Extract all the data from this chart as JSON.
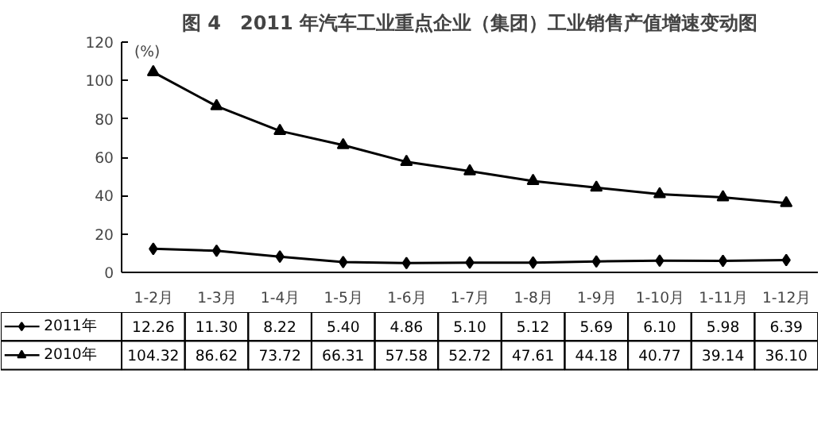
{
  "chart_data": {
    "type": "line",
    "title": "图 4　2011 年汽车工业重点企业（集团）工业销售产值增速变动图",
    "ylabel": "(%)",
    "categories": [
      "1-2月",
      "1-3月",
      "1-4月",
      "1-5月",
      "1-6月",
      "1-7月",
      "1-8月",
      "1-9月",
      "1-10月",
      "1-11月",
      "1-12月"
    ],
    "series": [
      {
        "name": "2011年",
        "color": "#000000",
        "marker": "diamond",
        "values": [
          12.26,
          11.3,
          8.22,
          5.4,
          4.86,
          5.1,
          5.12,
          5.69,
          6.1,
          5.98,
          6.39
        ],
        "value_labels": [
          "12.26",
          "11.30",
          "8.22",
          "5.40",
          "4.86",
          "5.10",
          "5.12",
          "5.69",
          "6.10",
          "5.98",
          "6.39"
        ]
      },
      {
        "name": "2010年",
        "color": "#000000",
        "marker": "triangle",
        "values": [
          104.32,
          86.62,
          73.72,
          66.31,
          57.58,
          52.72,
          47.61,
          44.18,
          40.77,
          39.14,
          36.1
        ],
        "value_labels": [
          "104.32",
          "86.62",
          "73.72",
          "66.31",
          "57.58",
          "52.72",
          "47.61",
          "44.18",
          "40.77",
          "39.14",
          "36.10"
        ]
      }
    ],
    "ylim": [
      0,
      120
    ],
    "yticks": [
      0,
      20,
      40,
      60,
      80,
      100,
      120
    ],
    "grid": false,
    "legend": "bottom",
    "line_style": "solid"
  }
}
